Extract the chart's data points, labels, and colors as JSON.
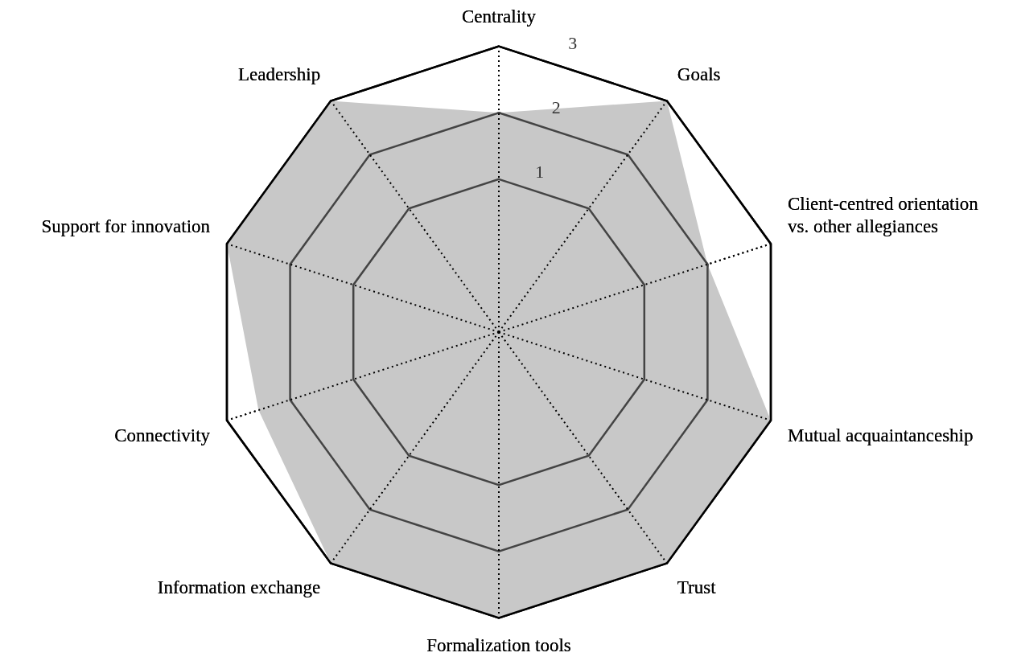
{
  "chart_data": {
    "type": "radar",
    "categories": [
      "Centrality",
      "Goals",
      "Client-centred orientation vs. other allegiances",
      "Mutual acquaintanceship",
      "Trust",
      "Formalization tools",
      "Information exchange",
      "Connectivity",
      "Support for innovation",
      "Leadership"
    ],
    "series": [
      {
        "color": "#c8c8c8",
        "values": [
          2,
          3,
          2,
          3,
          3,
          3,
          3,
          2.5,
          3,
          3
        ]
      }
    ],
    "ylim": [
      -1.3,
      3
    ],
    "yticks": [
      1,
      2,
      3
    ],
    "grid": true,
    "legend": false,
    "marker": "none"
  }
}
